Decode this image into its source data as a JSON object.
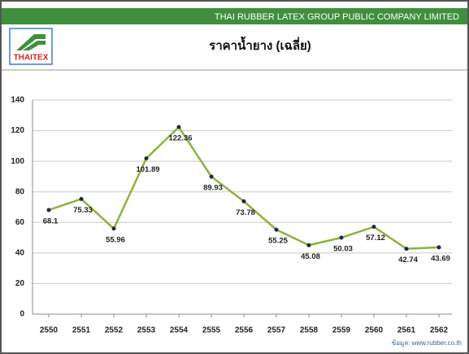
{
  "banner": "THAI RUBBER LATEX GROUP PUBLIC COMPANY LIMITED",
  "logo": "THAITEX",
  "source": "ข้อมูล: www.rubber.co.th",
  "chart_data": {
    "type": "line",
    "title": "ราคาน้ำยาง (เฉลี่ย)",
    "categories": [
      "2550",
      "2551",
      "2552",
      "2553",
      "2554",
      "2555",
      "2556",
      "2557",
      "2558",
      "2559",
      "2560",
      "2561",
      "2562"
    ],
    "values": [
      68.1,
      75.33,
      55.96,
      101.89,
      122.36,
      89.93,
      73.78,
      55.25,
      45.08,
      50.03,
      57.12,
      42.74,
      43.69
    ],
    "color": "#8db33a",
    "marker_color": "#1f2a44",
    "ylim": [
      0,
      140
    ],
    "yticks": [
      0,
      20,
      40,
      60,
      80,
      100,
      120,
      140
    ],
    "grid": true
  }
}
